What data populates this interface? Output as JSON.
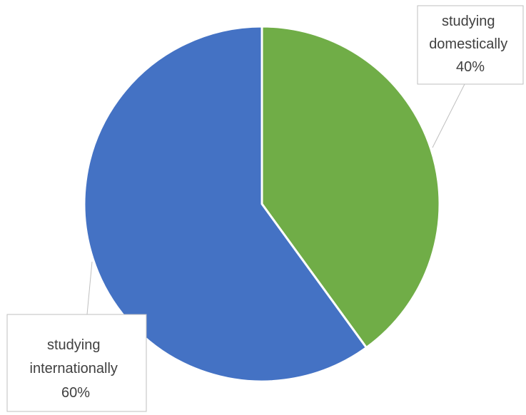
{
  "chart_data": {
    "type": "pie",
    "categories": [
      "studying domestically",
      "studying internationally"
    ],
    "values": [
      40,
      60
    ],
    "colors": [
      "#70ad47",
      "#4472c4"
    ],
    "data_labels": [
      {
        "lines": [
          "studying",
          "domestically",
          "40%"
        ]
      },
      {
        "lines": [
          "studying",
          "internationally",
          "60%"
        ]
      }
    ],
    "title": "",
    "start_angle_deg": 0,
    "direction": "clockwise",
    "legend": "none"
  }
}
